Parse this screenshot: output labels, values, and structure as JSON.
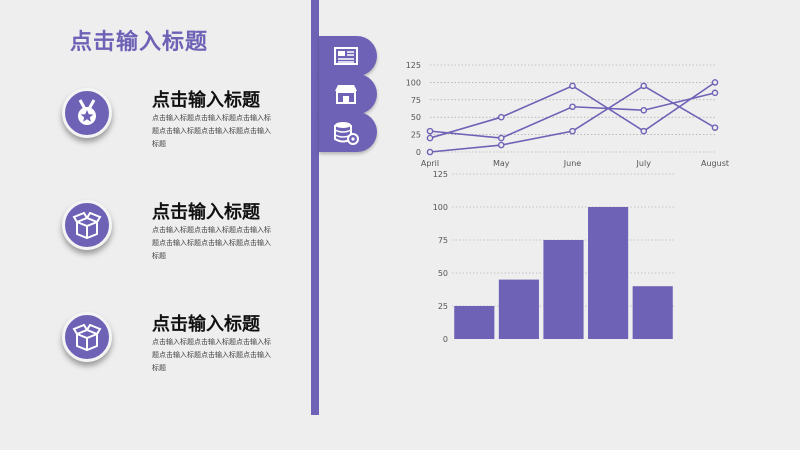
{
  "page_title": "点击输入标题",
  "features": [
    {
      "title": "点击输入标题",
      "desc": "点击输入标题点击输入标题点击输入标题点击输入标题点击输入标题点击输入标题",
      "icon": "medal-icon"
    },
    {
      "title": "点击输入标题",
      "desc": "点击输入标题点击输入标题点击输入标题点击输入标题点击输入标题点击输入标题",
      "icon": "open-box-icon"
    },
    {
      "title": "点击输入标题",
      "desc": "点击输入标题点击输入标题点击输入标题点击输入标题点击输入标题点击输入标题",
      "icon": "open-box-icon"
    }
  ],
  "tabs": [
    {
      "icon": "newspaper-icon"
    },
    {
      "icon": "store-icon"
    },
    {
      "icon": "database-gear-icon"
    }
  ],
  "colors": {
    "accent": "#6e62b6",
    "background": "#eeeeee"
  },
  "chart_data": [
    {
      "type": "line",
      "categories": [
        "April",
        "May",
        "June",
        "July",
        "August"
      ],
      "ylim": [
        0,
        125
      ],
      "yticks": [
        0,
        25,
        50,
        75,
        100,
        125
      ],
      "grid": true,
      "series": [
        {
          "values": [
            20,
            50,
            95,
            30,
            100
          ]
        },
        {
          "values": [
            30,
            20,
            65,
            60,
            85
          ]
        },
        {
          "values": [
            0,
            10,
            30,
            95,
            35
          ]
        }
      ]
    },
    {
      "type": "bar",
      "categories": [
        "",
        "",
        "",
        "",
        ""
      ],
      "values": [
        25,
        45,
        75,
        100,
        40
      ],
      "ylim": [
        0,
        125
      ],
      "yticks": [
        0,
        25,
        50,
        75,
        100,
        125
      ],
      "grid": true
    }
  ]
}
